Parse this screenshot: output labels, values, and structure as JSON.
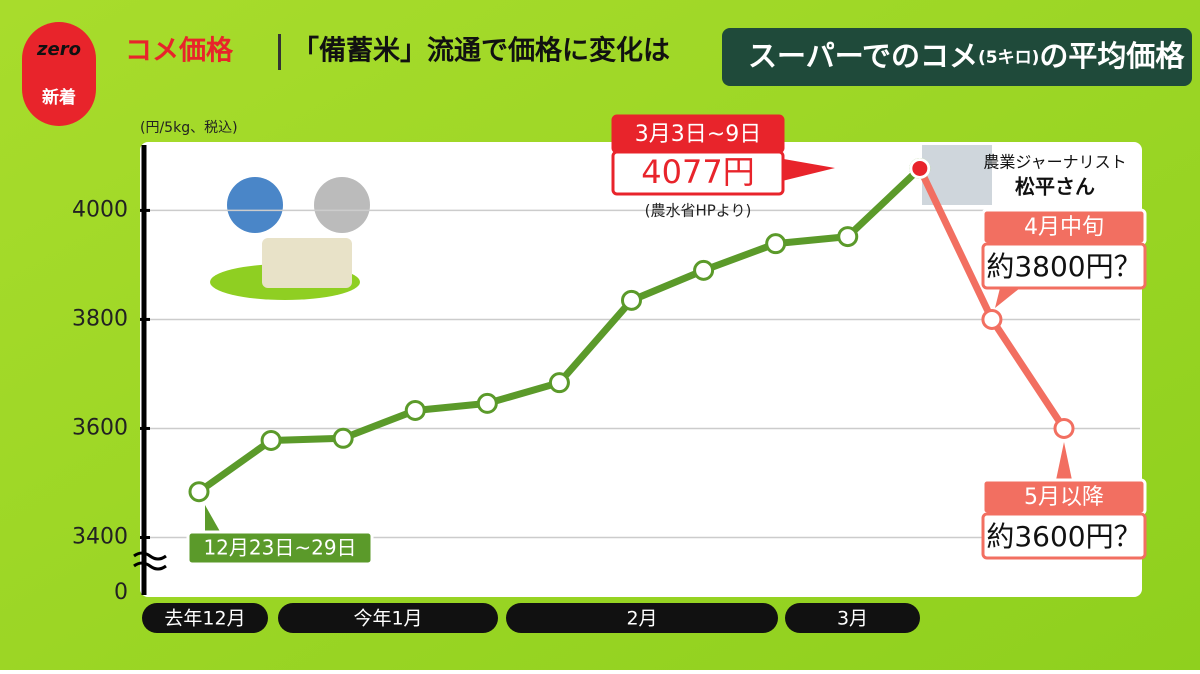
{
  "header": {
    "logo": "zero",
    "badge": "新着",
    "topic": "コメ価格",
    "headline": "「備蓄米」流通で価格に変化は"
  },
  "chart_data": {
    "type": "line",
    "title": "スーパーでのコメ",
    "title_note": "(5キロ)",
    "title_end": "の平均価格",
    "y_unit_label": "(円/5kg、税込)",
    "axis_break_label": "0",
    "categories": [
      null,
      null,
      null,
      null,
      null,
      null,
      null,
      null,
      null,
      null,
      null,
      null,
      null
    ],
    "series": [
      {
        "name": null,
        "color": "#5b9a2a",
        "values": [
          3484,
          3578,
          3582,
          3633,
          3646,
          3684,
          3835,
          3890,
          3939,
          3952,
          4077,
          null,
          null
        ]
      },
      {
        "name": null,
        "color": "#f26f61",
        "values": [
          null,
          null,
          null,
          null,
          null,
          null,
          null,
          null,
          null,
          null,
          4077,
          3800,
          3600
        ],
        "value_labels": [
          null,
          null,
          null,
          null,
          null,
          null,
          null,
          null,
          null,
          null,
          "4077円",
          "約3800円？",
          "約3600円？"
        ]
      }
    ],
    "ylim": [
      3300,
      4120
    ],
    "yticks": [
      3400,
      3600,
      3800,
      4000
    ],
    "grid": true,
    "annotations": {
      "start_period": "12月23日~29日",
      "peak_period": "3月3日~9日",
      "peak_source": "(農水省HPより)",
      "april": "4月中旬",
      "may": "5月以降"
    },
    "month_bands": [
      "去年12月",
      "今年1月",
      "2月",
      "3月"
    ],
    "commentator": {
      "role": "農業ジャーナリスト",
      "name": "松平さん"
    }
  }
}
